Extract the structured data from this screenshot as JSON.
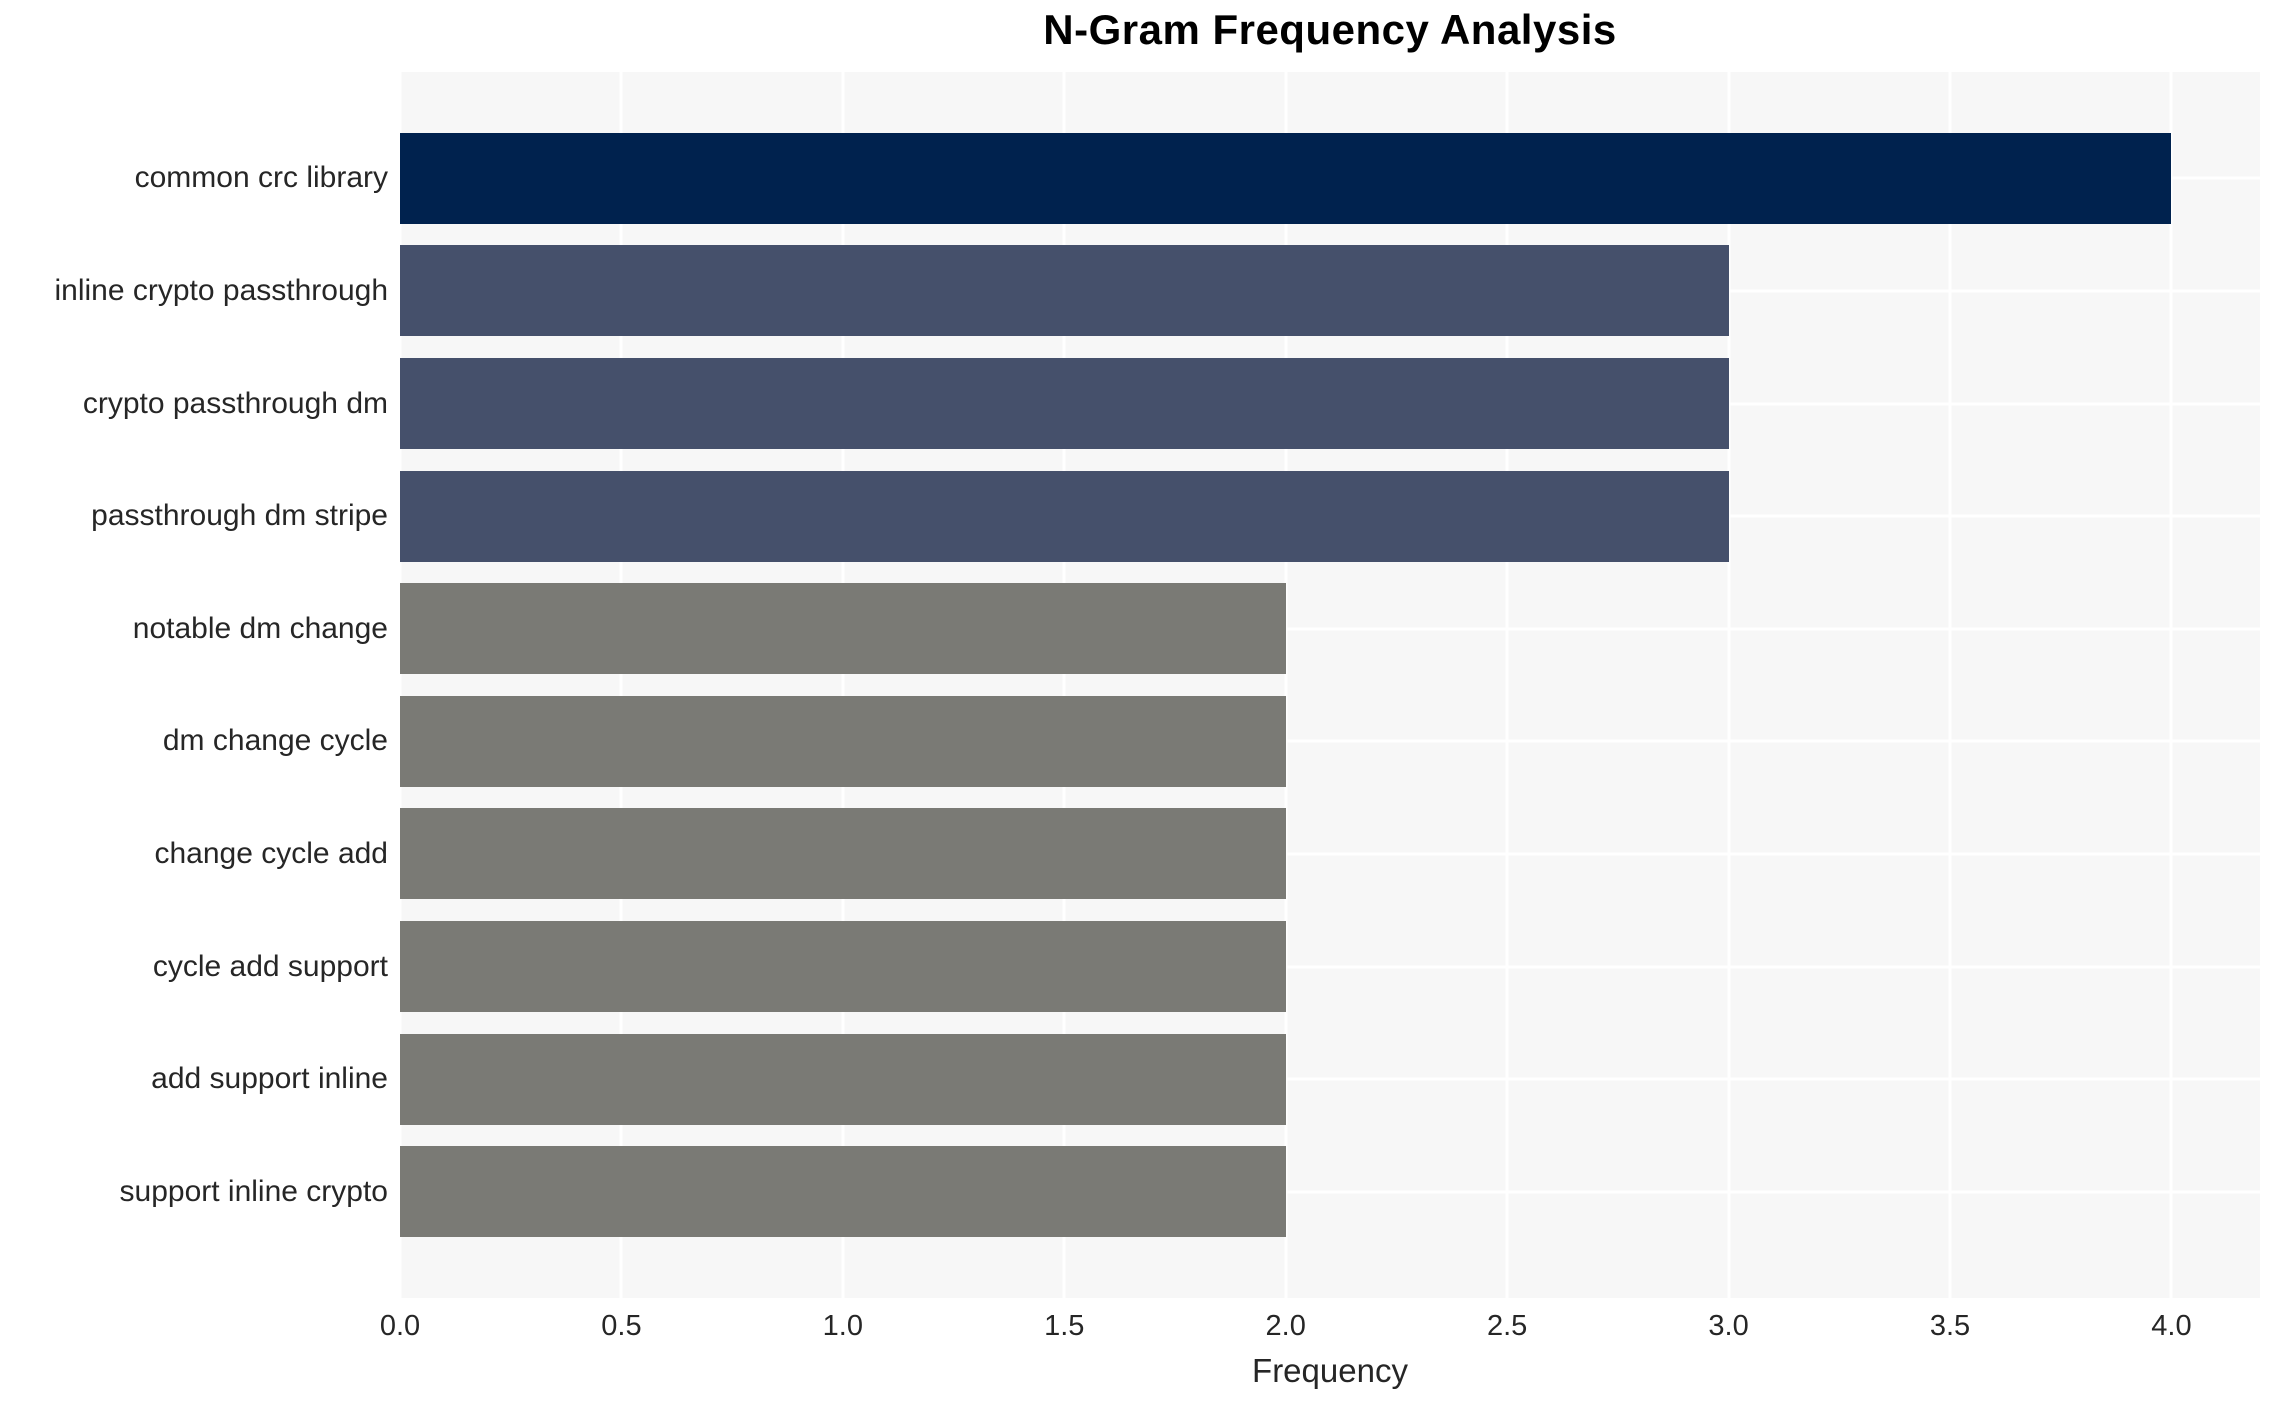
{
  "chart_data": {
    "type": "bar",
    "orientation": "horizontal",
    "title": "N-Gram Frequency Analysis",
    "xlabel": "Frequency",
    "ylabel": "",
    "categories": [
      "common crc library",
      "inline crypto passthrough",
      "crypto passthrough dm",
      "passthrough dm stripe",
      "notable dm change",
      "dm change cycle",
      "change cycle add",
      "cycle add support",
      "add support inline",
      "support inline crypto"
    ],
    "values": [
      4,
      3,
      3,
      3,
      2,
      2,
      2,
      2,
      2,
      2
    ],
    "bar_colors": [
      "#00224E",
      "#45506B",
      "#45506B",
      "#45506B",
      "#7A7A75",
      "#7A7A75",
      "#7A7A75",
      "#7A7A75",
      "#7A7A75",
      "#7A7A75"
    ],
    "xlim": [
      0,
      4.2
    ],
    "xticks": [
      "0.0",
      "0.5",
      "1.0",
      "1.5",
      "2.0",
      "2.5",
      "3.0",
      "3.5",
      "4.0"
    ],
    "xtick_values": [
      0,
      0.5,
      1,
      1.5,
      2,
      2.5,
      3,
      3.5,
      4
    ],
    "grid": true,
    "legend": false,
    "colors": {
      "bar_high": "#00224E",
      "bar_mid": "#45506B",
      "bar_low": "#7A7A75",
      "plot_background": "#F7F7F7",
      "gridline": "#FFFFFF",
      "tick_label": "#262626",
      "title": "#000000",
      "figure_background": "#FFFFFF"
    }
  }
}
